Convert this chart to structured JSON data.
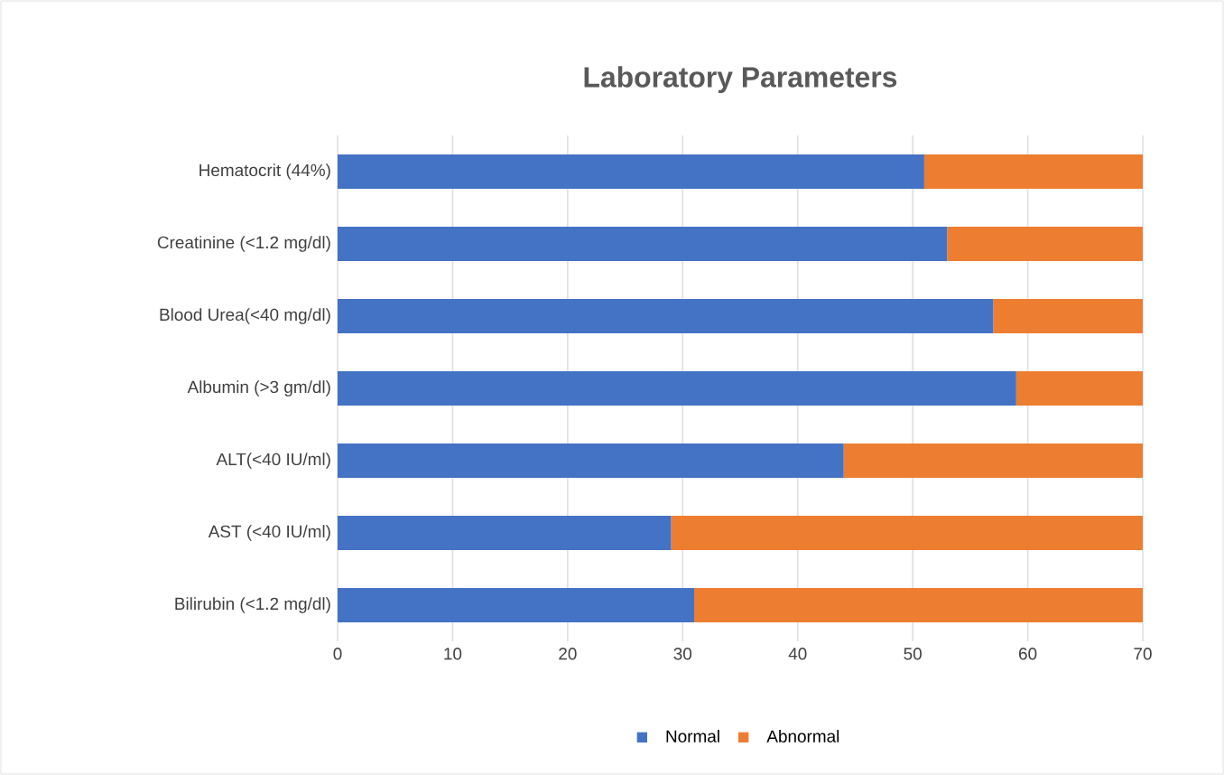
{
  "chart_data": {
    "type": "bar",
    "title": "Laboratory Parameters",
    "orientation": "horizontal",
    "stacked": true,
    "categories": [
      "Hematocrit (44%)",
      "Creatinine (<1.2 mg/dl)",
      "Blood Urea(<40 mg/dl)",
      "Albumin (>3 gm/dl)",
      "ALT(<40 IU/ml)",
      "AST (<40 IU/ml)",
      "Bilirubin (<1.2 mg/dl)"
    ],
    "series": [
      {
        "name": "Normal",
        "color": "#4472c4",
        "values": [
          51,
          53,
          57,
          59,
          44,
          29,
          31
        ]
      },
      {
        "name": "Abnormal",
        "color": "#ed7d31",
        "values": [
          19,
          17,
          13,
          11,
          26,
          41,
          39
        ]
      }
    ],
    "xlim": [
      0,
      70
    ],
    "xticks": [
      0,
      10,
      20,
      30,
      40,
      50,
      60,
      70
    ],
    "grid": "x",
    "legend": "bottom"
  }
}
